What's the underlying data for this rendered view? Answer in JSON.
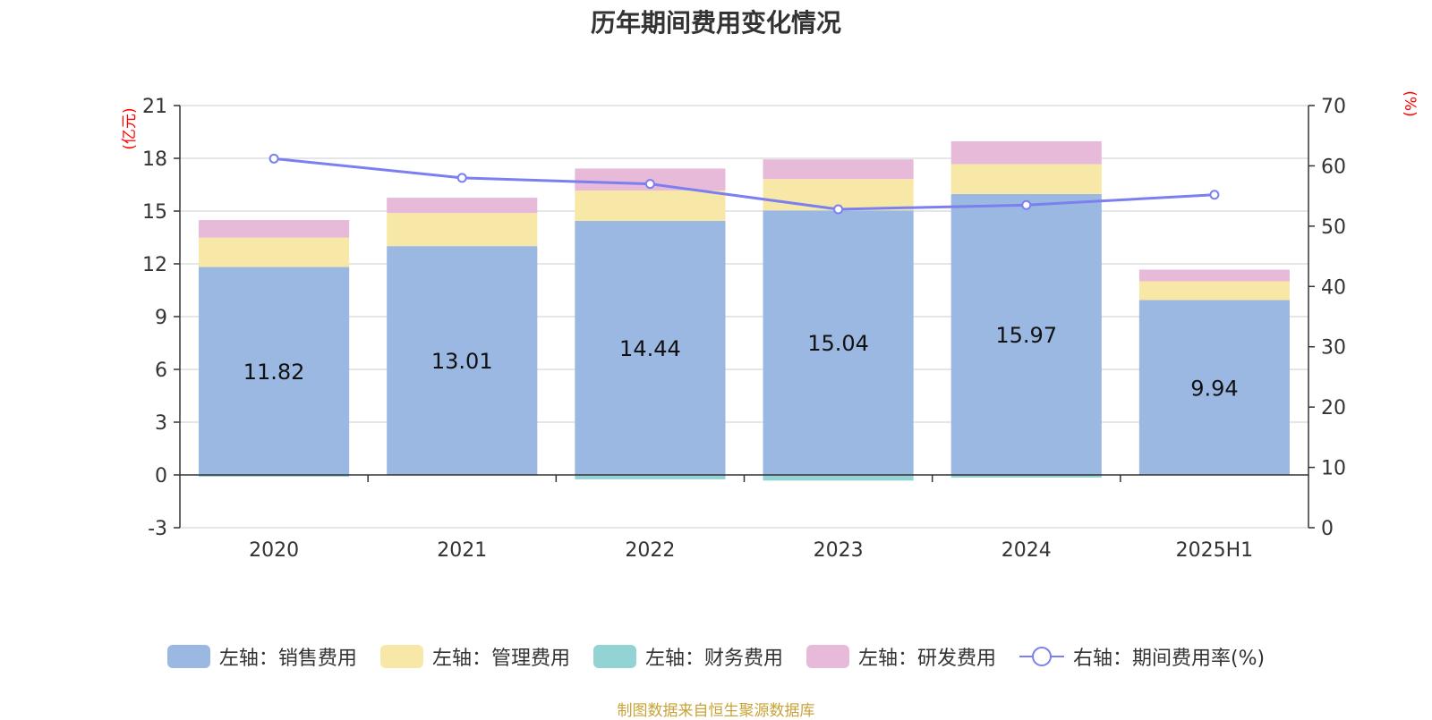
{
  "title": "历年期间费用变化情况",
  "source_note": "制图数据来自恒生聚源数据库",
  "colors": {
    "sales": "#9bb8e2",
    "admin": "#f8e8a8",
    "finance": "#93d3d3",
    "rnd": "#e8bada",
    "rate_line": "#7b7ff0",
    "axis_unit": "#ff0000"
  },
  "chart_data": {
    "type": "bar",
    "stacked": true,
    "categories": [
      "2020",
      "2021",
      "2022",
      "2023",
      "2024",
      "2025H1"
    ],
    "left_axis": {
      "label": "(亿元)",
      "min": -3,
      "max": 21,
      "ticks": [
        -3,
        0,
        3,
        6,
        9,
        12,
        15,
        18,
        21
      ]
    },
    "right_axis": {
      "label": "(%)",
      "min": 0,
      "max": 70,
      "ticks": [
        0,
        10,
        20,
        30,
        40,
        50,
        60,
        70
      ]
    },
    "series": [
      {
        "name": "左轴：销售费用",
        "key": "sales",
        "values": [
          11.82,
          13.01,
          14.44,
          15.04,
          15.97,
          9.94
        ],
        "data_labels": [
          "11.82",
          "13.01",
          "14.44",
          "15.04",
          "15.97",
          "9.94"
        ]
      },
      {
        "name": "左轴：管理费用",
        "key": "admin",
        "values": [
          1.68,
          1.88,
          1.73,
          1.78,
          1.7,
          1.07
        ]
      },
      {
        "name": "左轴：财务费用",
        "key": "finance",
        "values": [
          -0.1,
          -0.03,
          -0.25,
          -0.32,
          -0.15,
          0.0
        ]
      },
      {
        "name": "左轴：研发费用",
        "key": "rnd",
        "values": [
          0.99,
          0.87,
          1.25,
          1.12,
          1.3,
          0.66
        ]
      },
      {
        "name": "右轴：期间费用率(%)",
        "key": "rate_line",
        "type": "line",
        "axis": "right",
        "values": [
          61.2,
          58.0,
          57.0,
          52.8,
          53.5,
          55.2
        ]
      }
    ],
    "grid": true,
    "legend_position": "bottom"
  }
}
